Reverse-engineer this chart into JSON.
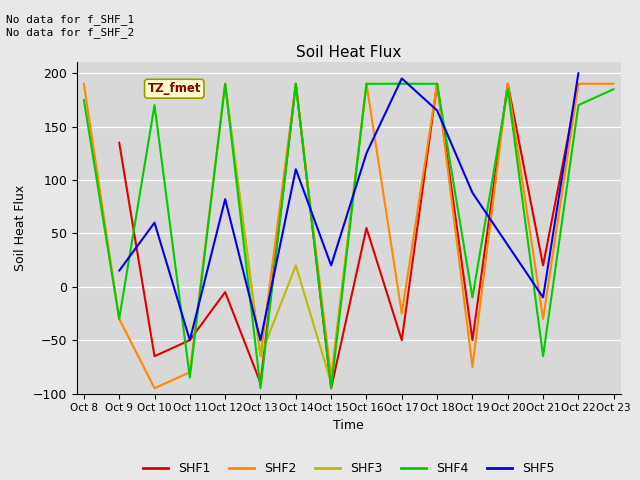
{
  "title": "Soil Heat Flux",
  "ylabel": "Soil Heat Flux",
  "xlabel": "Time",
  "ylim": [
    -100,
    210
  ],
  "fig_bg_color": "#e8e8e8",
  "plot_bg_color": "#d8d8d8",
  "annotation_text": "No data for f_SHF_1\nNo data for f_SHF_2",
  "tz_label": "TZ_fmet",
  "xtick_labels": [
    "Oct 8",
    "Oct 9",
    "Oct 10",
    "Oct 11",
    "Oct 12",
    "Oct 13",
    "Oct 14",
    "Oct 15",
    "Oct 16",
    "Oct 17",
    "Oct 18",
    "Oct 19",
    "Oct 20",
    "Oct 21",
    "Oct 22",
    "Oct 23"
  ],
  "series": {
    "SHF1": {
      "color": "#dd0000",
      "x": [
        1,
        2,
        3,
        4,
        5,
        6,
        7,
        8,
        9,
        10,
        11,
        12,
        13,
        14
      ],
      "y": [
        135,
        -65,
        -50,
        -5,
        -90,
        190,
        -95,
        55,
        -50,
        190,
        -50,
        190,
        20,
        190
      ]
    },
    "SHF2": {
      "color": "#ff8800",
      "x": [
        0,
        1,
        2,
        3,
        4,
        5,
        6,
        7,
        8,
        9,
        10,
        11,
        12,
        13,
        14,
        15
      ],
      "y": [
        190,
        -30,
        -95,
        -80,
        190,
        -65,
        190,
        -85,
        190,
        -25,
        190,
        -75,
        190,
        -30,
        190,
        190
      ]
    },
    "SHF3": {
      "color": "#bbbb00",
      "x": [
        4,
        5,
        6,
        7,
        8
      ],
      "y": [
        190,
        -65,
        20,
        -90,
        190
      ]
    },
    "SHF4": {
      "color": "#00cc00",
      "x": [
        0,
        1,
        2,
        3,
        4,
        5,
        6,
        7,
        8,
        9,
        10,
        11,
        12,
        13,
        14,
        15
      ],
      "y": [
        175,
        -30,
        170,
        -85,
        190,
        -95,
        190,
        -95,
        190,
        190,
        190,
        -10,
        185,
        -65,
        170,
        185
      ]
    },
    "SHF5": {
      "color": "#0000ee",
      "x": [
        1,
        2,
        3,
        4,
        5,
        6,
        7,
        8,
        9,
        10,
        11,
        13,
        14
      ],
      "y": [
        15,
        60,
        -50,
        82,
        -50,
        110,
        20,
        125,
        195,
        165,
        88,
        -10,
        200
      ]
    }
  },
  "legend_order": [
    "SHF1",
    "SHF2",
    "SHF3",
    "SHF4",
    "SHF5"
  ]
}
